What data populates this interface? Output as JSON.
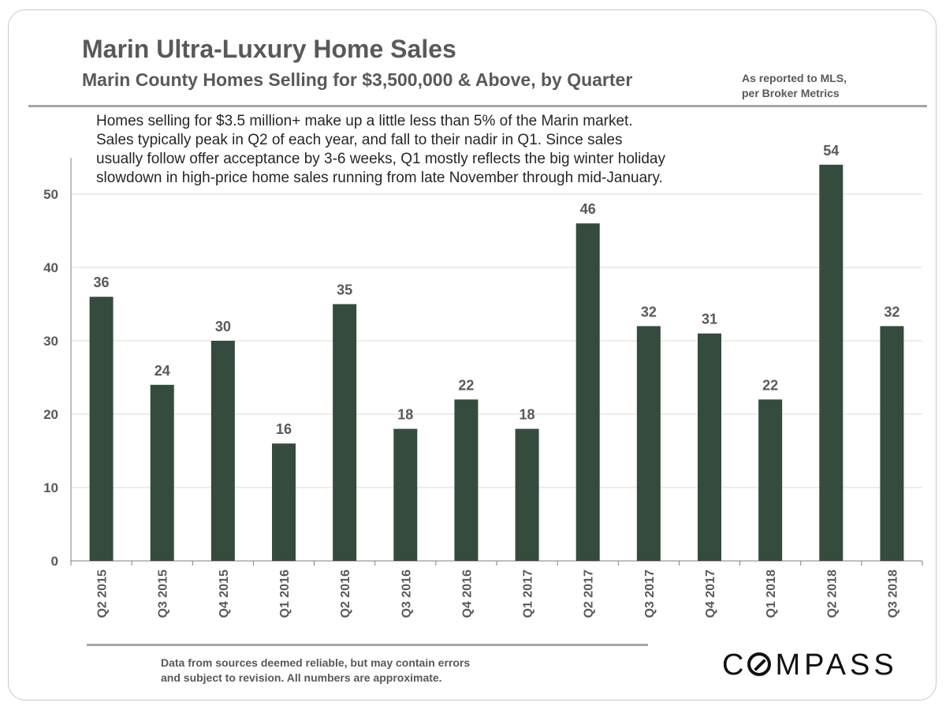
{
  "title": "Marin Ultra-Luxury Home Sales",
  "subtitle": "Marin County Homes Selling for $3,500,000 & Above, by Quarter",
  "source_note": [
    "As reported to MLS,",
    "per Broker Metrics"
  ],
  "annotation": [
    "Homes selling for $3.5 million+ make up a little less than 5% of the Marin market.",
    "Sales typically peak in Q2 of each year, and fall to their nadir in Q1. Since sales",
    "usually follow offer acceptance by 3-6 weeks, Q1 mostly reflects the big winter holiday",
    "slowdown in high-price home sales running from late November through mid-January."
  ],
  "disclaimer": [
    "Data from sources deemed reliable, but may contain errors",
    "and subject to revision. All numbers are approximate."
  ],
  "logo": "COMPASS",
  "colors": {
    "bar": "#344b3d",
    "text": "#595959",
    "grid": "#d9dcc8"
  },
  "chart_data": {
    "type": "bar",
    "categories": [
      "Q2 2015",
      "Q3 2015",
      "Q4 2015",
      "Q1 2016",
      "Q2 2016",
      "Q3 2016",
      "Q4 2016",
      "Q1 2017",
      "Q2 2017",
      "Q3 2017",
      "Q4 2017",
      "Q1 2018",
      "Q2 2018",
      "Q3 2018"
    ],
    "values": [
      36,
      24,
      30,
      16,
      35,
      18,
      22,
      18,
      46,
      32,
      31,
      22,
      54,
      32
    ],
    "ylim": [
      0,
      55
    ],
    "yticks": [
      0,
      10,
      20,
      30,
      40,
      50
    ],
    "grid": true,
    "data_labels": true,
    "xlabel": "",
    "ylabel": ""
  }
}
